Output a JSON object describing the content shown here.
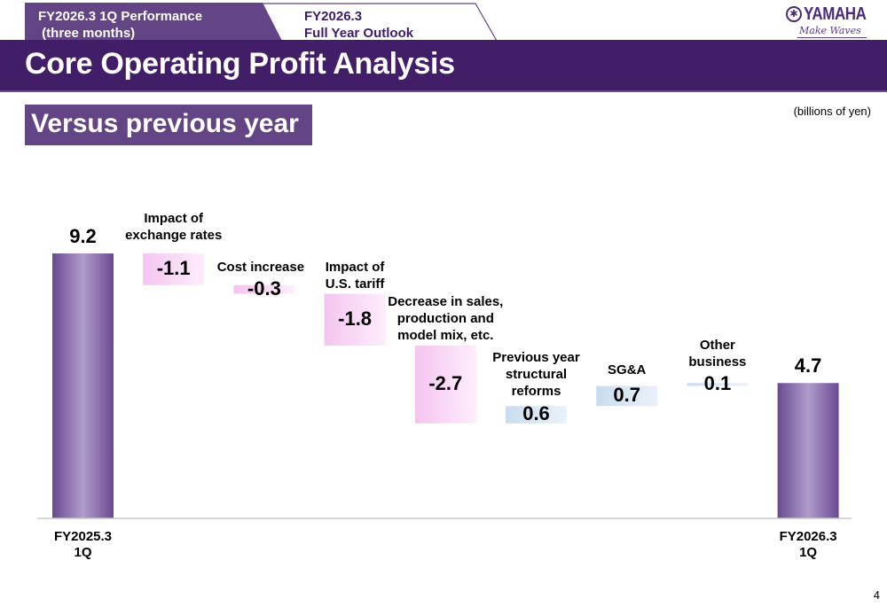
{
  "tabs": [
    {
      "line1": "FY2026.3 1Q Performance",
      "line2": " (three months)",
      "active": true
    },
    {
      "line1": "FY2026.3",
      "line2": "Full Year Outlook",
      "active": false
    }
  ],
  "logo": {
    "name": "YAMAHA",
    "tagline": "Make Waves"
  },
  "page_title": "Core Operating Profit Analysis",
  "section_title": "Versus previous year",
  "unit_note": "(billions of yen)",
  "page_number": "4",
  "colors": {
    "banner": "#421e69",
    "tab_active": "#634586",
    "total_bar": "#7a5a9c",
    "negative": "#f5c8f0",
    "positive": "#cfe0f0"
  },
  "chart_data": {
    "type": "waterfall",
    "title": "Core Operating Profit Analysis - Versus previous year",
    "unit": "billions of yen",
    "steps": [
      {
        "label": "FY2025.3\n1Q",
        "value": 9.2,
        "kind": "total",
        "value_label": "9.2"
      },
      {
        "label": "Impact of\nexchange rates",
        "value": -1.1,
        "kind": "delta",
        "value_label": "-1.1"
      },
      {
        "label": "Cost increase",
        "value": -0.3,
        "kind": "delta",
        "value_label": "-0.3"
      },
      {
        "label": "Impact of\nU.S. tariff",
        "value": -1.8,
        "kind": "delta",
        "value_label": "-1.8"
      },
      {
        "label": "Decrease in sales,\nproduction and\nmodel mix, etc.",
        "value": -2.7,
        "kind": "delta",
        "value_label": "-2.7"
      },
      {
        "label": "Previous year\nstructural\nreforms",
        "value": 0.6,
        "kind": "delta",
        "value_label": "0.6"
      },
      {
        "label": "SG&A",
        "value": 0.7,
        "kind": "delta",
        "value_label": "0.7"
      },
      {
        "label": "Other\nbusiness",
        "value": 0.1,
        "kind": "delta",
        "value_label": "0.1"
      },
      {
        "label": "FY2026.3\n1Q",
        "value": 4.7,
        "kind": "total",
        "value_label": "4.7"
      }
    ],
    "ylim": [
      0,
      9.2
    ],
    "grid": false,
    "legend": "none"
  }
}
